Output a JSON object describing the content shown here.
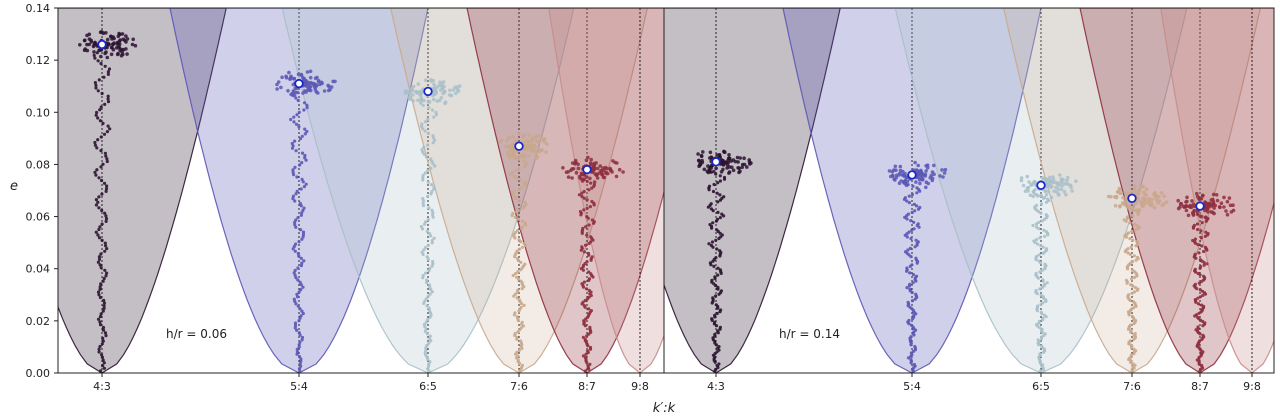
{
  "chart_data": {
    "type": "scatter",
    "xlabel": "k′:k",
    "ylabel": "e",
    "ylim": [
      0,
      0.14
    ],
    "yticks": [
      "0.00",
      "0.02",
      "0.04",
      "0.06",
      "0.08",
      "0.10",
      "0.12",
      "0.14"
    ],
    "grid": false,
    "resonances": [
      "4:3",
      "5:4",
      "6:5",
      "7:6",
      "8:7",
      "9:8"
    ],
    "resonance_colors": [
      "#2b1430",
      "#5b57b5",
      "#a9bfc9",
      "#c9a88c",
      "#8e2e3e",
      "#c98b8b"
    ],
    "resonance_fill_opacity": [
      0.28,
      0.28,
      0.25,
      0.22,
      0.28,
      0.28
    ],
    "panels": [
      {
        "annotation": "h/r = 0.06",
        "marker_points": [
          {
            "resonance": "4:3",
            "e": 0.126
          },
          {
            "resonance": "5:4",
            "e": 0.111
          },
          {
            "resonance": "6:5",
            "e": 0.108
          },
          {
            "resonance": "7:6",
            "e": 0.087
          },
          {
            "resonance": "8:7",
            "e": 0.078
          }
        ]
      },
      {
        "annotation": "h/r = 0.14",
        "marker_points": [
          {
            "resonance": "4:3",
            "e": 0.081
          },
          {
            "resonance": "5:4",
            "e": 0.076
          },
          {
            "resonance": "6:5",
            "e": 0.072
          },
          {
            "resonance": "7:6",
            "e": 0.067
          },
          {
            "resonance": "8:7",
            "e": 0.064
          }
        ]
      }
    ]
  }
}
